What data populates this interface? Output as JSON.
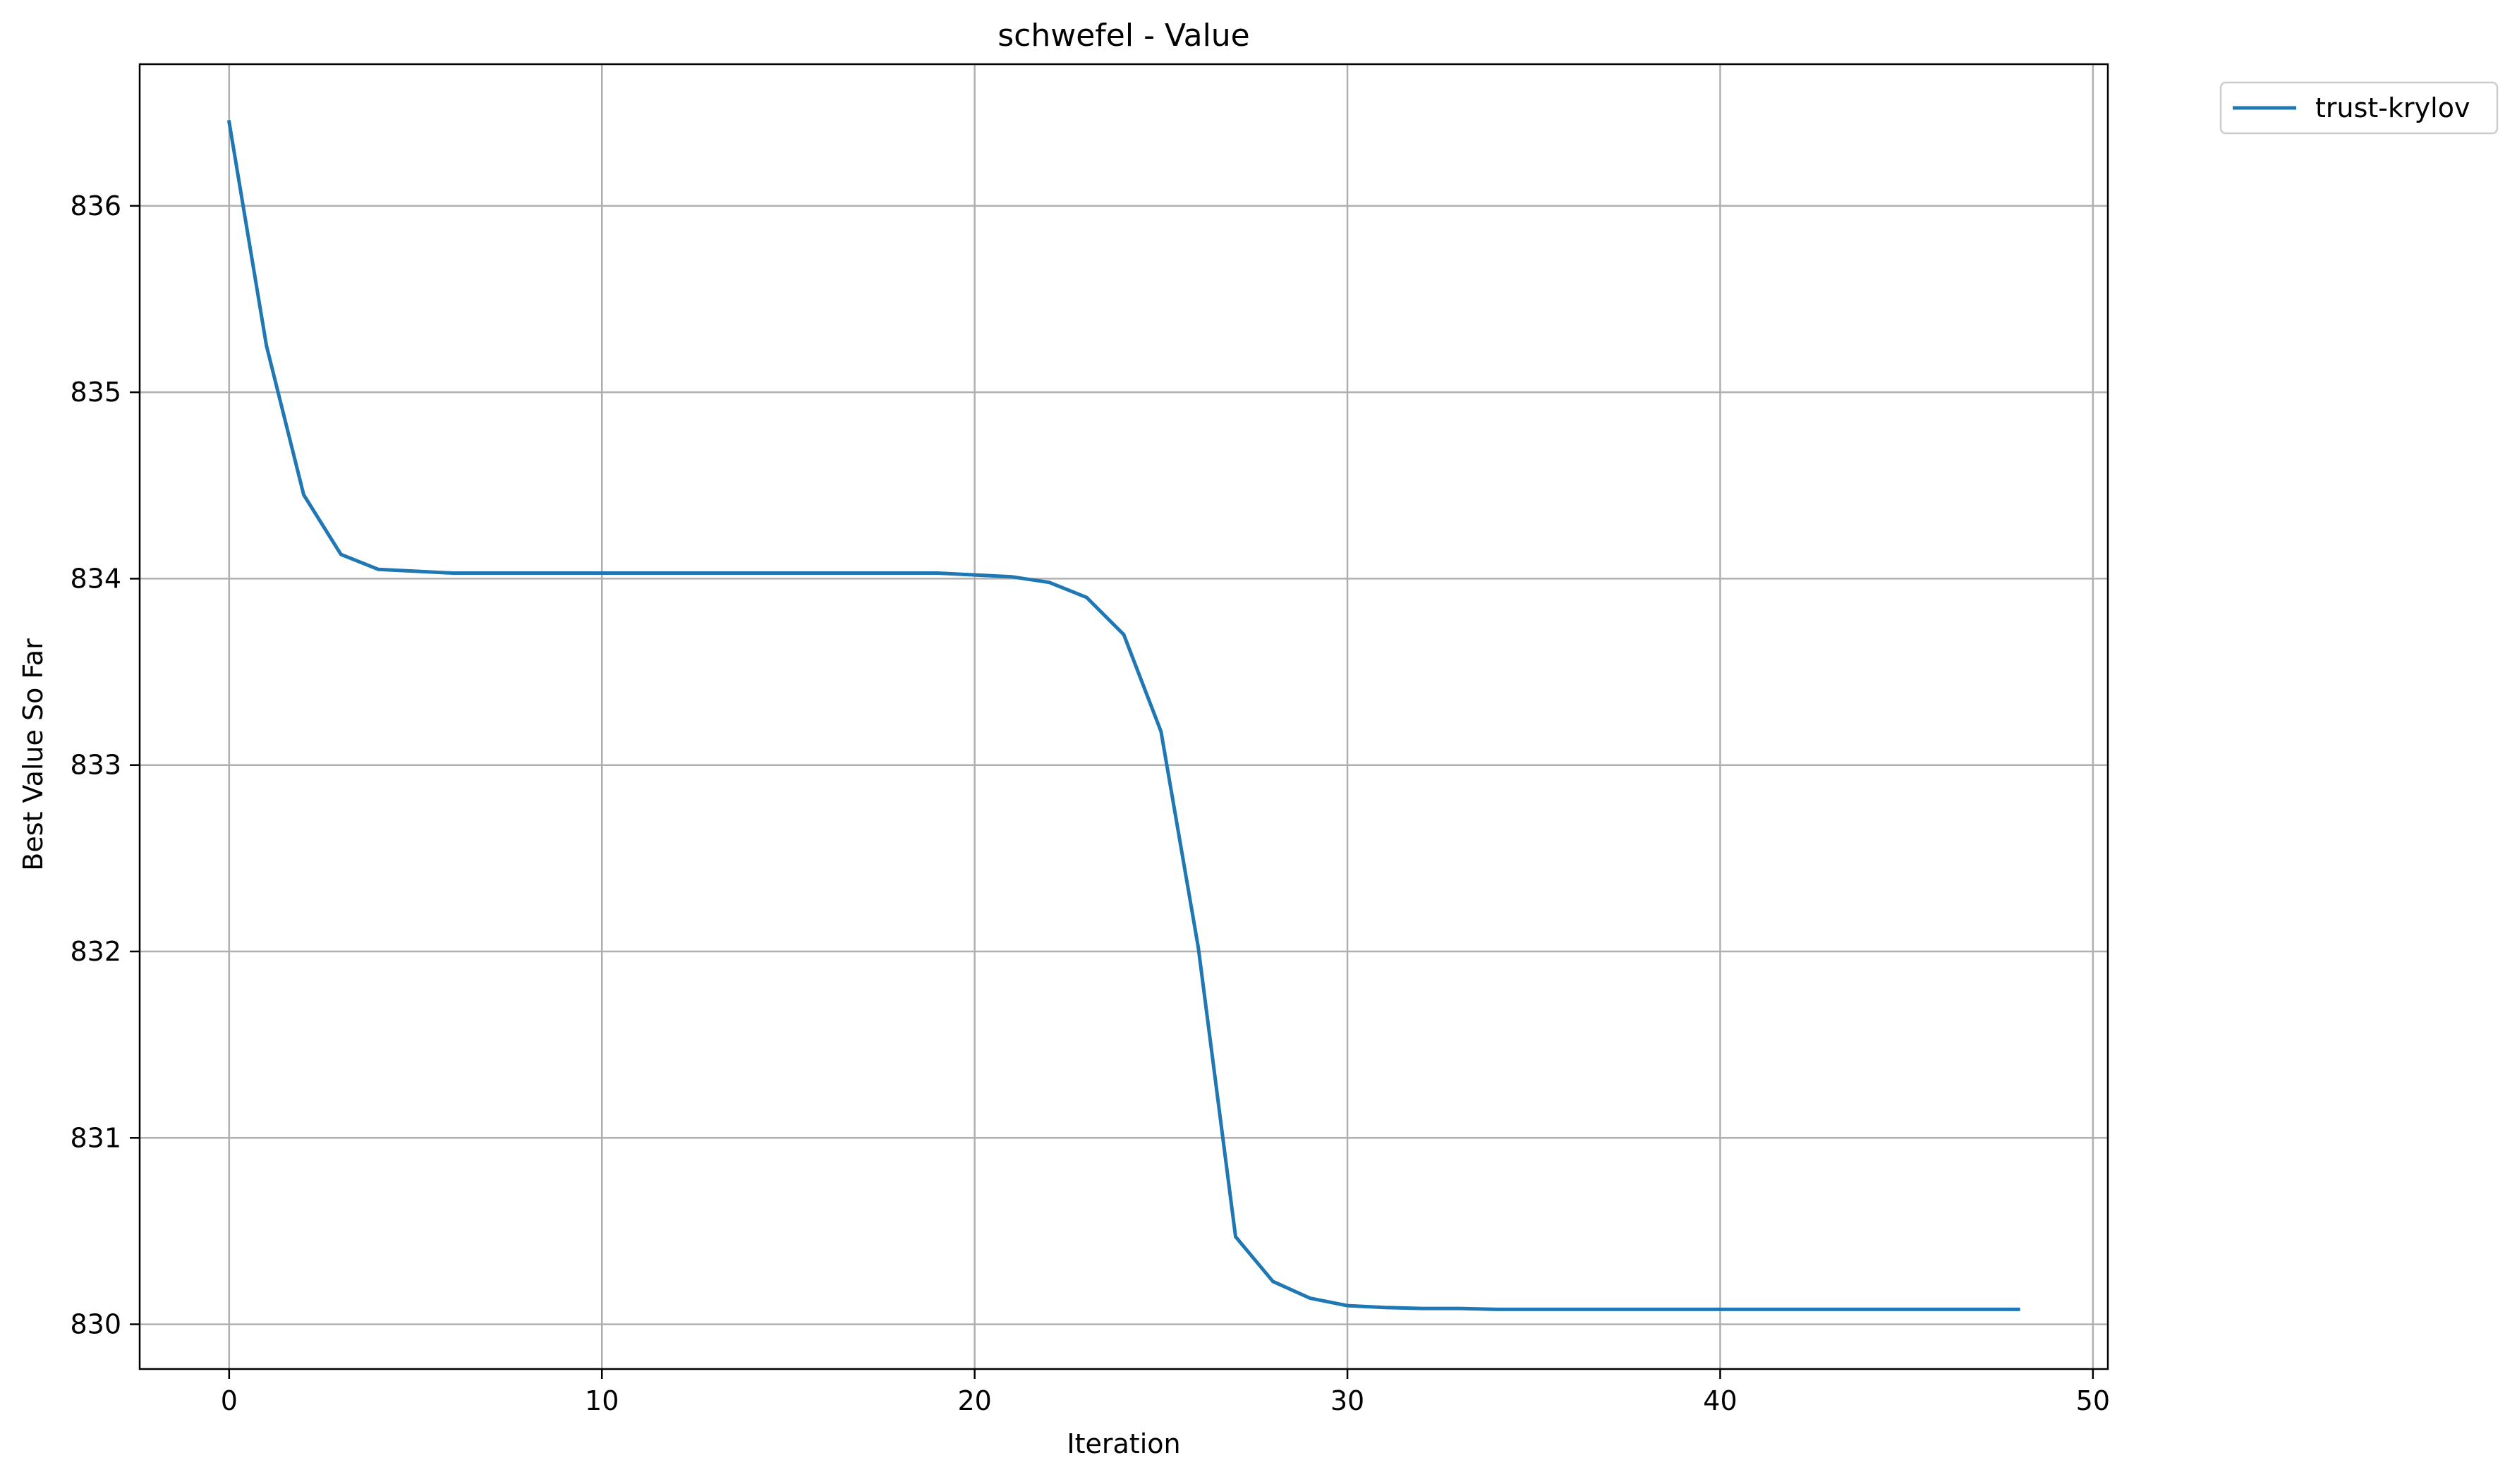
{
  "chart_data": {
    "type": "line",
    "title": "schwefel - Value",
    "xlabel": "Iteration",
    "ylabel": "Best Value So Far",
    "xlim": [
      -2.4,
      50.4
    ],
    "ylim": [
      829.76,
      836.76
    ],
    "xticks": [
      0,
      10,
      20,
      30,
      40,
      50
    ],
    "yticks": [
      830,
      831,
      832,
      833,
      834,
      835,
      836
    ],
    "grid": true,
    "legend_position": "outside-top-right",
    "series": [
      {
        "name": "trust-krylov",
        "color": "#1f77b4",
        "x": [
          0,
          1,
          2,
          3,
          4,
          5,
          6,
          7,
          8,
          9,
          10,
          11,
          12,
          13,
          14,
          15,
          16,
          17,
          18,
          19,
          20,
          21,
          22,
          23,
          24,
          25,
          26,
          27,
          28,
          29,
          30,
          31,
          32,
          33,
          34,
          35,
          36,
          37,
          38,
          39,
          40,
          41,
          42,
          43,
          44,
          45,
          46,
          47,
          48
        ],
        "y": [
          836.45,
          835.25,
          834.45,
          834.13,
          834.05,
          834.04,
          834.03,
          834.03,
          834.03,
          834.03,
          834.03,
          834.03,
          834.03,
          834.03,
          834.03,
          834.03,
          834.03,
          834.03,
          834.03,
          834.03,
          834.02,
          834.01,
          833.98,
          833.9,
          833.7,
          833.18,
          832.02,
          830.47,
          830.23,
          830.14,
          830.1,
          830.09,
          830.085,
          830.085,
          830.08,
          830.08,
          830.08,
          830.08,
          830.08,
          830.08,
          830.08,
          830.08,
          830.08,
          830.08,
          830.08,
          830.08,
          830.08,
          830.08,
          830.08
        ]
      }
    ]
  }
}
